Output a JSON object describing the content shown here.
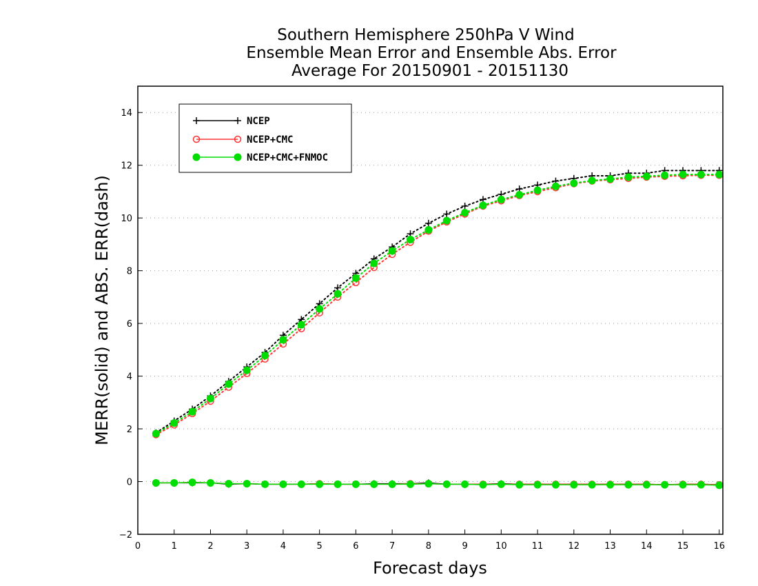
{
  "chart_data": {
    "type": "line",
    "title": [
      "Southern Hemisphere 250hPa V Wind",
      "Ensemble Mean Error and Ensemble Abs. Error",
      "Average For 20150901 - 20151130"
    ],
    "xlabel": "Forecast days",
    "ylabel": "MERR(solid) and ABS. ERR(dash)",
    "xlim": [
      0,
      16.1
    ],
    "ylim": [
      -2,
      15
    ],
    "xticks": [
      0,
      1,
      2,
      3,
      4,
      5,
      6,
      7,
      8,
      9,
      10,
      11,
      12,
      13,
      14,
      15,
      16
    ],
    "yticks": [
      -2,
      0,
      2,
      4,
      6,
      8,
      10,
      12,
      14
    ],
    "grid": "horizontal-dotted",
    "legend": {
      "placement": "top-left",
      "entries": [
        "NCEP",
        "NCEP+CMC",
        "NCEP+CMC+FNMOC"
      ]
    },
    "x": [
      0.5,
      1,
      1.5,
      2,
      2.5,
      3,
      3.5,
      4,
      4.5,
      5,
      5.5,
      6,
      6.5,
      7,
      7.5,
      8,
      8.5,
      9,
      9.5,
      10,
      10.5,
      11,
      11.5,
      12,
      12.5,
      13,
      13.5,
      14,
      14.5,
      15,
      15.5,
      16
    ],
    "series": [
      {
        "name": "NCEP",
        "color": "#000000",
        "marker": "plus",
        "abs_err": [
          1.85,
          2.3,
          2.75,
          3.25,
          3.8,
          4.35,
          4.9,
          5.55,
          6.15,
          6.75,
          7.35,
          7.9,
          8.45,
          8.9,
          9.4,
          9.8,
          10.15,
          10.45,
          10.7,
          10.9,
          11.1,
          11.25,
          11.4,
          11.5,
          11.6,
          11.6,
          11.7,
          11.7,
          11.8,
          11.8,
          11.8,
          11.8
        ],
        "mean_err": [
          -0.05,
          -0.05,
          -0.05,
          -0.05,
          -0.1,
          -0.08,
          -0.1,
          -0.1,
          -0.1,
          -0.08,
          -0.1,
          -0.1,
          -0.08,
          -0.08,
          -0.08,
          -0.05,
          -0.1,
          -0.1,
          -0.1,
          -0.08,
          -0.1,
          -0.1,
          -0.1,
          -0.1,
          -0.1,
          -0.1,
          -0.1,
          -0.1,
          -0.12,
          -0.1,
          -0.1,
          -0.12
        ]
      },
      {
        "name": "NCEP+CMC",
        "color": "#ff3333",
        "marker": "open-circle",
        "abs_err": [
          1.78,
          2.15,
          2.58,
          3.05,
          3.58,
          4.1,
          4.65,
          5.22,
          5.8,
          6.4,
          7.0,
          7.55,
          8.12,
          8.62,
          9.08,
          9.5,
          9.85,
          10.15,
          10.45,
          10.65,
          10.85,
          11.0,
          11.15,
          11.3,
          11.4,
          11.45,
          11.5,
          11.55,
          11.58,
          11.6,
          11.62,
          11.62
        ],
        "mean_err": [
          -0.05,
          -0.05,
          -0.03,
          -0.05,
          -0.08,
          -0.08,
          -0.1,
          -0.1,
          -0.1,
          -0.08,
          -0.1,
          -0.1,
          -0.1,
          -0.1,
          -0.08,
          -0.08,
          -0.1,
          -0.1,
          -0.1,
          -0.1,
          -0.1,
          -0.1,
          -0.1,
          -0.1,
          -0.1,
          -0.1,
          -0.1,
          -0.1,
          -0.12,
          -0.1,
          -0.1,
          -0.12
        ]
      },
      {
        "name": "NCEP+CMC+FNMOC",
        "color": "#00dd00",
        "marker": "filled-circle",
        "abs_err": [
          1.82,
          2.22,
          2.65,
          3.15,
          3.7,
          4.22,
          4.78,
          5.38,
          5.95,
          6.55,
          7.12,
          7.72,
          8.28,
          8.75,
          9.18,
          9.55,
          9.9,
          10.2,
          10.48,
          10.7,
          10.88,
          11.05,
          11.2,
          11.32,
          11.42,
          11.48,
          11.55,
          11.58,
          11.62,
          11.65,
          11.65,
          11.65
        ],
        "mean_err": [
          -0.05,
          -0.05,
          -0.03,
          -0.05,
          -0.08,
          -0.08,
          -0.1,
          -0.1,
          -0.1,
          -0.1,
          -0.1,
          -0.1,
          -0.1,
          -0.1,
          -0.1,
          -0.08,
          -0.1,
          -0.1,
          -0.12,
          -0.1,
          -0.12,
          -0.12,
          -0.12,
          -0.12,
          -0.12,
          -0.12,
          -0.12,
          -0.12,
          -0.12,
          -0.12,
          -0.12,
          -0.14
        ]
      }
    ]
  }
}
